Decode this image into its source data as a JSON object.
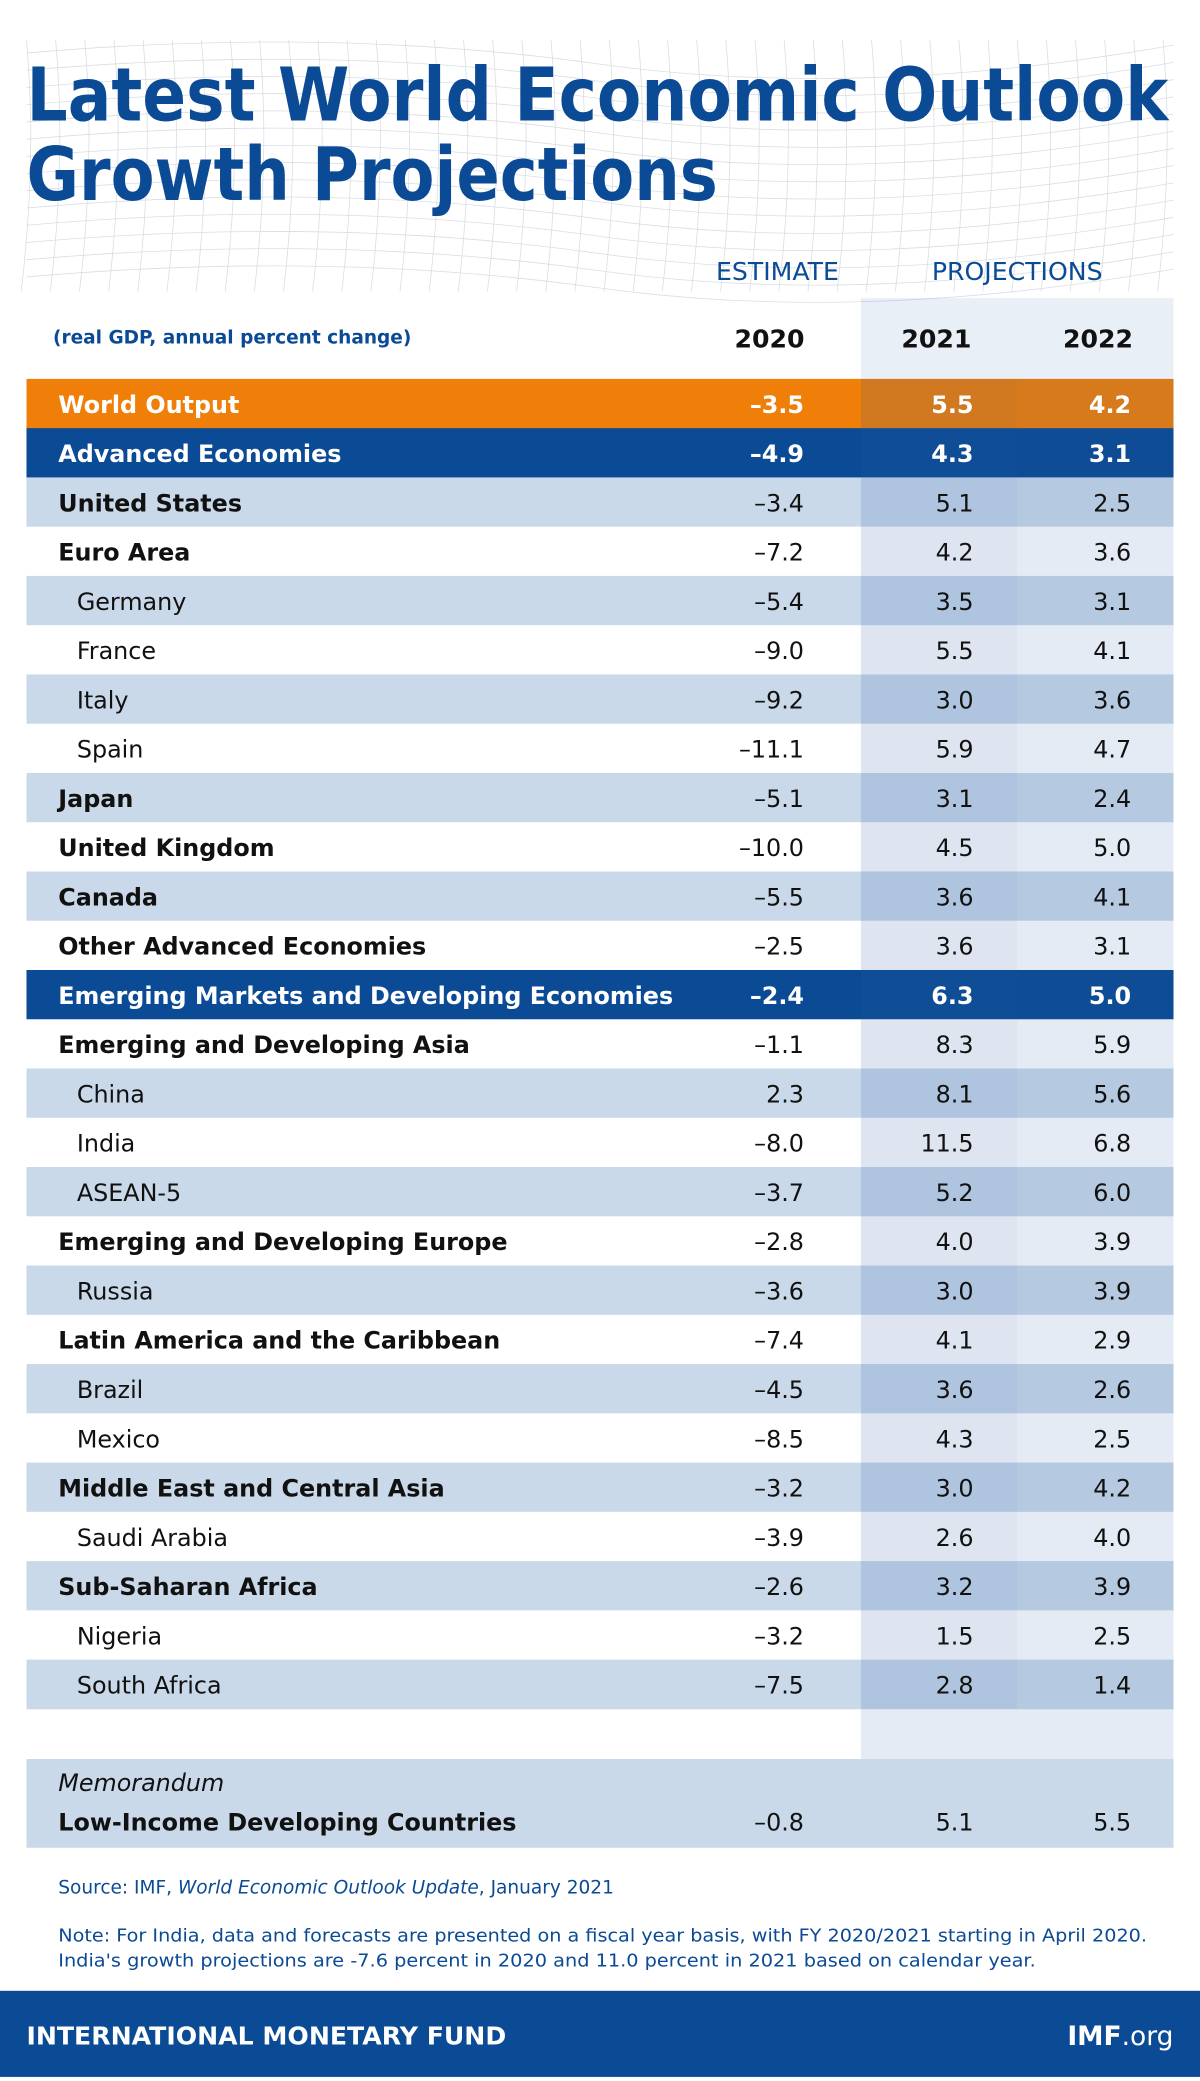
{
  "header": {
    "title": [
      "Latest World Economic Outlook",
      "Growth Projections"
    ],
    "estimate_label": "ESTIMATE",
    "projections_label": "PROJECTIONS",
    "units": "(real GDP, annual percent change)",
    "years": [
      "2020",
      "2021",
      "2022"
    ]
  },
  "table": {
    "rows": [
      [
        "World Output",
        "–3.5",
        "5.5",
        "4.2"
      ],
      [
        "Advanced Economies",
        "–4.9",
        "4.3",
        "3.1"
      ],
      [
        "United States",
        "–3.4",
        "5.1",
        "2.5"
      ],
      [
        "Euro Area",
        "–7.2",
        "4.2",
        "3.6"
      ],
      [
        "Germany",
        "–5.4",
        "3.5",
        "3.1"
      ],
      [
        "France",
        "–9.0",
        "5.5",
        "4.1"
      ],
      [
        "Italy",
        "–9.2",
        "3.0",
        "3.6"
      ],
      [
        "Spain",
        "–11.1",
        "5.9",
        "4.7"
      ],
      [
        "Japan",
        "–5.1",
        "3.1",
        "2.4"
      ],
      [
        "United Kingdom",
        "–10.0",
        "4.5",
        "5.0"
      ],
      [
        "Canada",
        "–5.5",
        "3.6",
        "4.1"
      ],
      [
        "Other Advanced Economies",
        "–2.5",
        "3.6",
        "3.1"
      ],
      [
        "Emerging Markets and Developing Economies",
        "–2.4",
        "6.3",
        "5.0"
      ],
      [
        "Emerging and Developing Asia",
        "–1.1",
        "8.3",
        "5.9"
      ],
      [
        "China",
        "2.3",
        "8.1",
        "5.6"
      ],
      [
        "India",
        "–8.0",
        "11.5",
        "6.8"
      ],
      [
        "ASEAN-5",
        "–3.7",
        "5.2",
        "6.0"
      ],
      [
        "Emerging and Developing Europe",
        "–2.8",
        "4.0",
        "3.9"
      ],
      [
        "Russia",
        "–3.6",
        "3.0",
        "3.9"
      ],
      [
        "Latin America and the Caribbean",
        "–7.4",
        "4.1",
        "2.9"
      ],
      [
        "Brazil",
        "–4.5",
        "3.6",
        "2.6"
      ],
      [
        "Mexico",
        "–8.5",
        "4.3",
        "2.5"
      ],
      [
        "Middle East and Central Asia",
        "–3.2",
        "3.0",
        "4.2"
      ],
      [
        "Saudi Arabia",
        "–3.9",
        "2.6",
        "4.0"
      ],
      [
        "Sub-Saharan Africa",
        "–2.6",
        "3.2",
        "3.9"
      ],
      [
        "Nigeria",
        "–3.2",
        "1.5",
        "2.5"
      ],
      [
        "South Africa",
        "–7.5",
        "2.8",
        "1.4"
      ]
    ]
  },
  "memorandum": {
    "label": "Memorandum",
    "row": [
      "Low-Income Developing Countries",
      "–0.8",
      "5.1",
      "5.5"
    ]
  },
  "source": {
    "prefix": "Source: IMF, ",
    "publication": "World Economic Outlook Update",
    "suffix": ", January 2021"
  },
  "note": [
    "Note: For India, data and forecasts are presented on a fiscal year basis, with FY 2020/2021 starting in April 2020.",
    "India's growth projections are -7.6 percent in 2020 and 11.0 percent in 2021 based on calendar year."
  ],
  "footer": {
    "organization": "INTERNATIONAL MONETARY FUND",
    "site_bold": "IMF",
    "site_rest": ".org"
  }
}
